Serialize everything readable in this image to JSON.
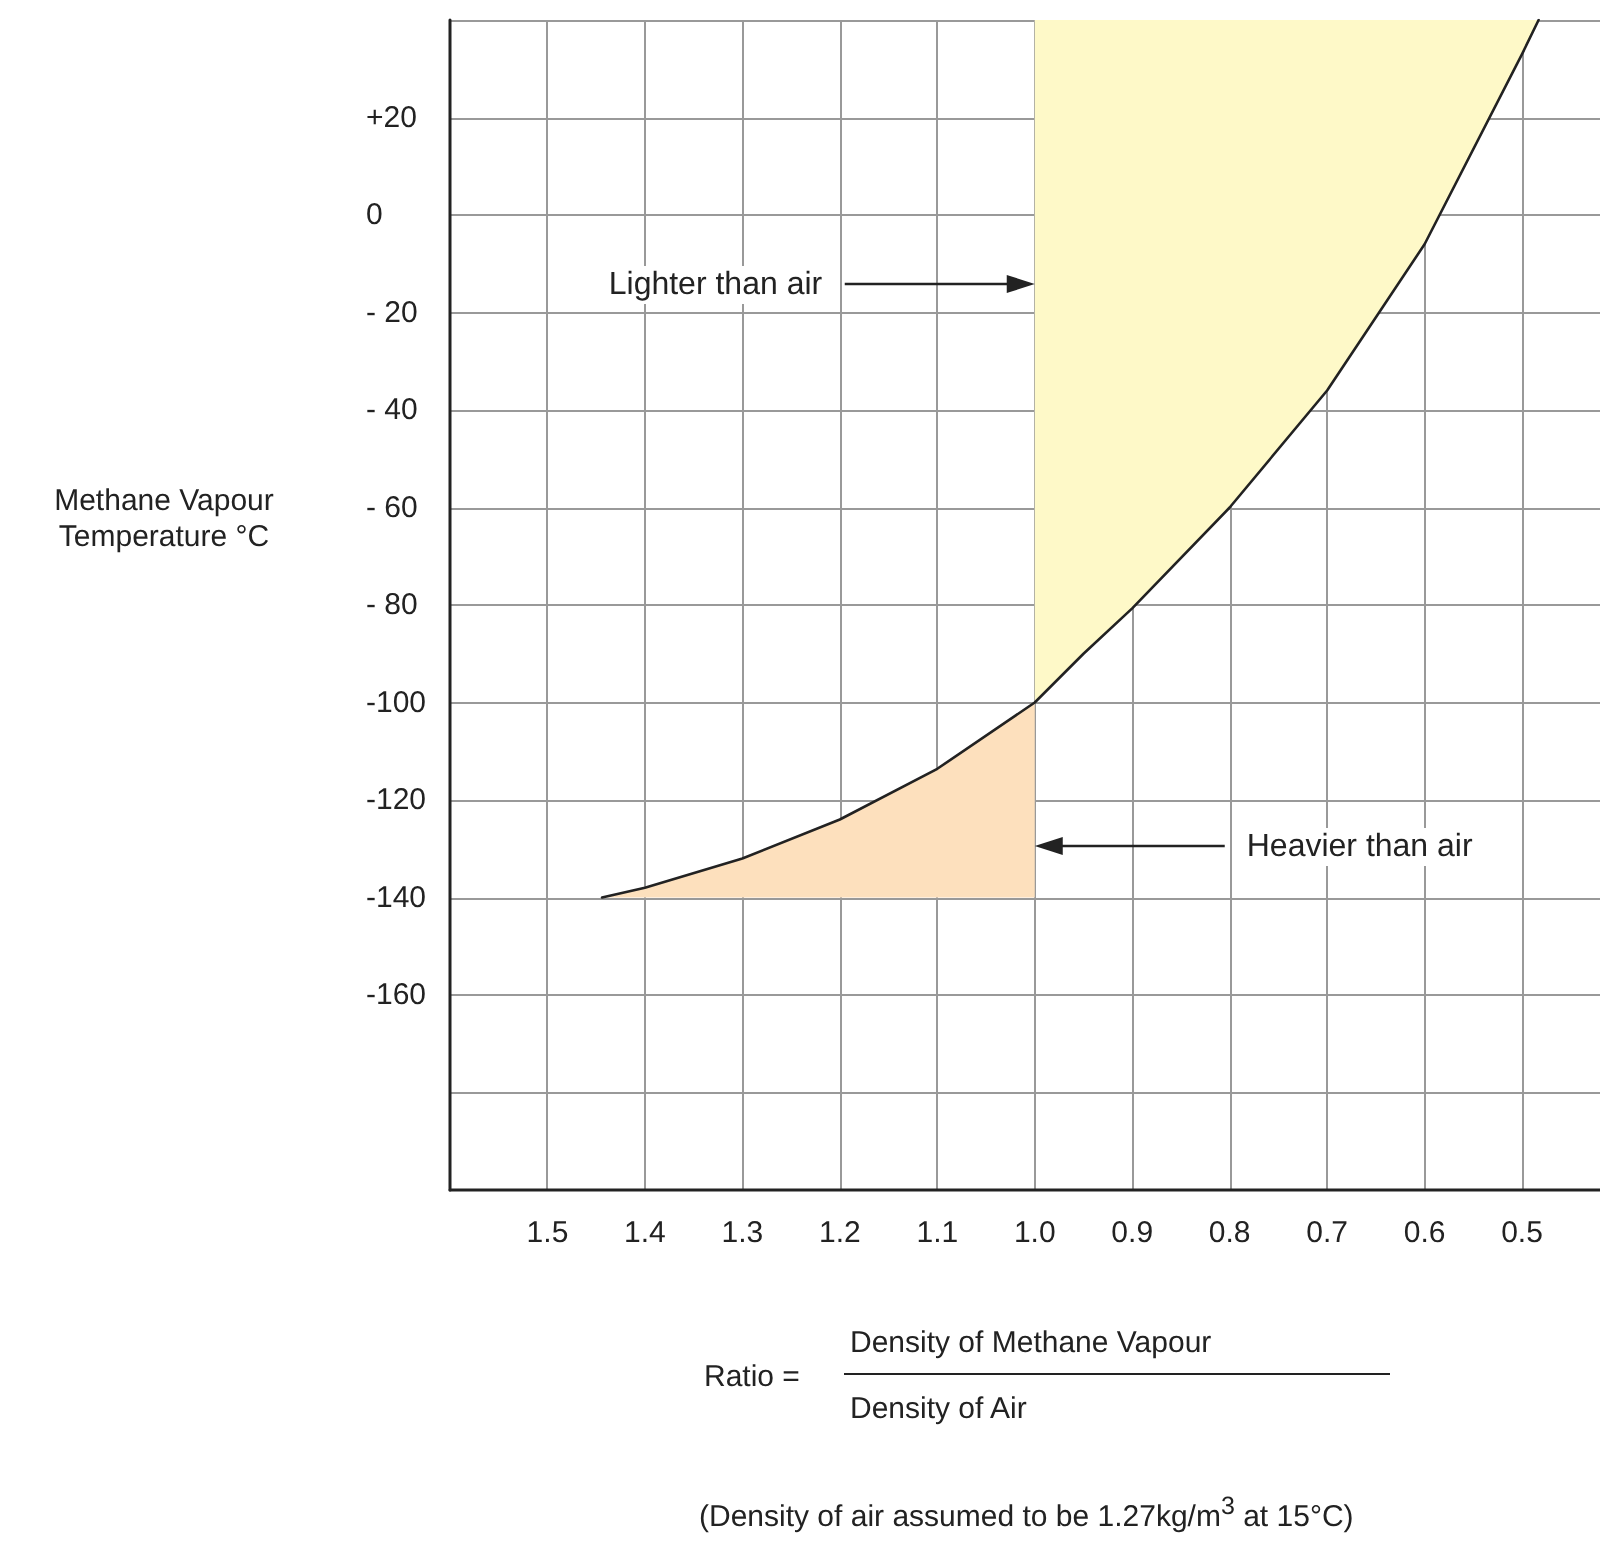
{
  "chart_data": {
    "type": "line",
    "xlabel": "Ratio =",
    "annotations": [
      "Lighter than air",
      "Heavier than air",
      "Methane Vapour Temperature °C",
      "Density of Methane Vapour",
      "Density of Air",
      "(Density of air assumed to be 1.27kg/m$^{3}$  at 15°C)"
    ],
    "series": [
      {
        "type": "area",
        "color": "#fef9c8",
        "x": [
          1.0,
          1.0,
          0.95,
          0.9,
          0.8,
          0.7,
          0.6,
          0.5,
          0.483
        ],
        "values": [
          40,
          -100,
          -90,
          -80.7,
          -60,
          -36,
          -6,
          33,
          40
        ]
      },
      {
        "type": "area",
        "color": "#fde0bd",
        "x": [
          1.444,
          1.4,
          1.3,
          1.2,
          1.1,
          1.0,
          1.0
        ],
        "values": [
          -140,
          -138,
          -132,
          -124,
          -113.6,
          -100,
          -140
        ]
      },
      {
        "color": "#222222",
        "x": [
          1.444,
          1.4,
          1.3,
          1.2,
          1.1,
          1.0,
          0.95,
          0.9,
          0.8,
          0.7,
          0.6,
          0.5,
          0.483
        ],
        "values": [
          -140,
          -138,
          -132,
          -124,
          -113.6,
          -100,
          -90,
          -80.7,
          -60,
          -36,
          -6,
          33,
          40
        ]
      }
    ],
    "xlim": [
      1.6,
      0.42
    ],
    "xticks": [
      1.5,
      1.4,
      1.3,
      1.2,
      1.1,
      {
        "value": 1.0,
        "label": "1.0"
      },
      0.9,
      0.8,
      0.7,
      0.6,
      0.5
    ],
    "ylim": [
      -200,
      40
    ],
    "yticks": [
      {
        "value": -180,
        "label": null
      },
      -160,
      -140,
      -120,
      -100,
      {
        "value": -80,
        "label": "- 80"
      },
      {
        "value": -60,
        "label": "- 60"
      },
      {
        "value": -40,
        "label": "- 40"
      },
      {
        "value": -20,
        "label": "- 20"
      },
      0,
      {
        "value": 20,
        "label": "+20"
      },
      {
        "value": 40,
        "label": null
      }
    ],
    "grid": true,
    "marker": "none",
    "line_style": "solid"
  }
}
